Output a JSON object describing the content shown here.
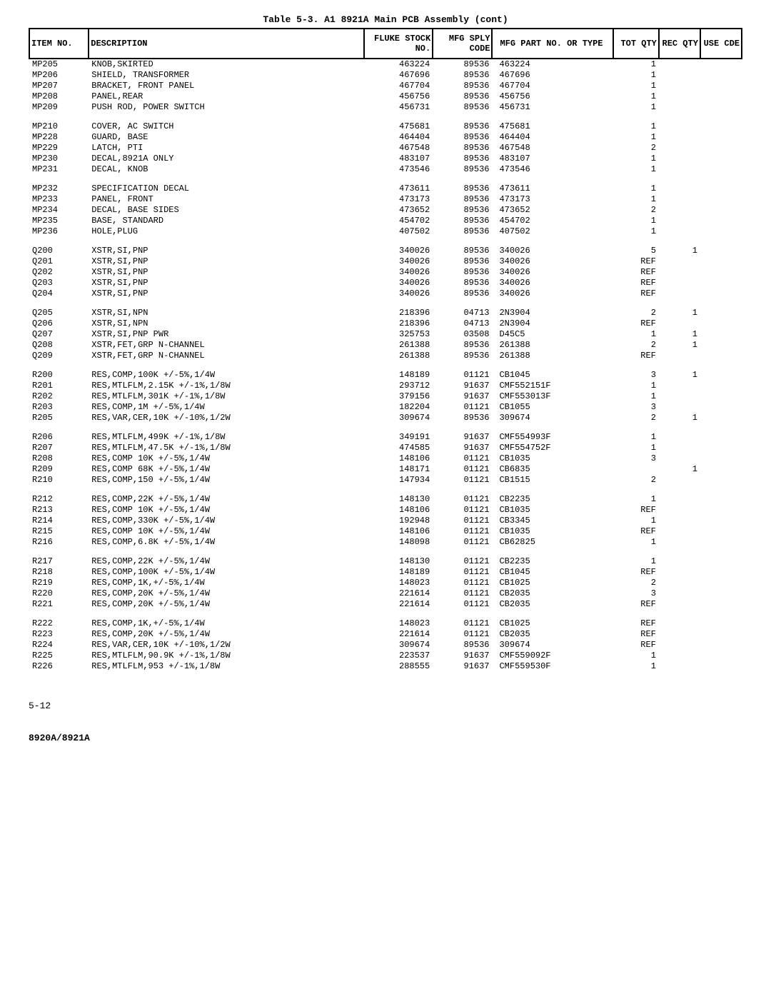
{
  "title": "Table 5-3. A1 8921A Main PCB Assembly (cont)",
  "headers": {
    "item": "ITEM NO.",
    "desc": "DESCRIPTION",
    "stock": "FLUKE STOCK NO.",
    "sply": "MFG SPLY CODE",
    "part": "MFG PART NO. OR TYPE",
    "tot": "TOT QTY",
    "rec": "REC QTY",
    "use": "USE CDE"
  },
  "rows": [
    {
      "item": "MP205",
      "desc": "KNOB,SKIRTED",
      "stock": "463224",
      "sply": "89536",
      "part": "463224",
      "tot": "1",
      "rec": "",
      "use": ""
    },
    {
      "item": "MP206",
      "desc": "SHIELD, TRANSFORMER",
      "stock": "467696",
      "sply": "89536",
      "part": "467696",
      "tot": "1",
      "rec": "",
      "use": ""
    },
    {
      "item": "MP207",
      "desc": "BRACKET, FRONT PANEL",
      "stock": "467704",
      "sply": "89536",
      "part": "467704",
      "tot": "1",
      "rec": "",
      "use": ""
    },
    {
      "item": "MP208",
      "desc": "PANEL,REAR",
      "stock": "456756",
      "sply": "89536",
      "part": "456756",
      "tot": "1",
      "rec": "",
      "use": ""
    },
    {
      "item": "MP209",
      "desc": "PUSH ROD, POWER SWITCH",
      "stock": "456731",
      "sply": "89536",
      "part": "456731",
      "tot": "1",
      "rec": "",
      "use": ""
    },
    {
      "gap": true
    },
    {
      "item": "MP210",
      "desc": "COVER, AC SWITCH",
      "stock": "475681",
      "sply": "89536",
      "part": "475681",
      "tot": "1",
      "rec": "",
      "use": ""
    },
    {
      "item": "MP228",
      "desc": "GUARD, BASE",
      "stock": "464404",
      "sply": "89536",
      "part": "464404",
      "tot": "1",
      "rec": "",
      "use": ""
    },
    {
      "item": "MP229",
      "desc": "LATCH, PTI",
      "stock": "467548",
      "sply": "89536",
      "part": "467548",
      "tot": "2",
      "rec": "",
      "use": ""
    },
    {
      "item": "MP230",
      "desc": "DECAL,8921A ONLY",
      "stock": "483107",
      "sply": "89536",
      "part": "483107",
      "tot": "1",
      "rec": "",
      "use": ""
    },
    {
      "item": "MP231",
      "desc": "DECAL, KNOB",
      "stock": "473546",
      "sply": "89536",
      "part": "473546",
      "tot": "1",
      "rec": "",
      "use": ""
    },
    {
      "gap": true
    },
    {
      "item": "MP232",
      "desc": "SPECIFICATION DECAL",
      "stock": "473611",
      "sply": "89536",
      "part": "473611",
      "tot": "1",
      "rec": "",
      "use": ""
    },
    {
      "item": "MP233",
      "desc": "PANEL, FRONT",
      "stock": "473173",
      "sply": "89536",
      "part": "473173",
      "tot": "1",
      "rec": "",
      "use": ""
    },
    {
      "item": "MP234",
      "desc": "DECAL, BASE SIDES",
      "stock": "473652",
      "sply": "89536",
      "part": "473652",
      "tot": "2",
      "rec": "",
      "use": ""
    },
    {
      "item": "MP235",
      "desc": "BASE, STANDARD",
      "stock": "454702",
      "sply": "89536",
      "part": "454702",
      "tot": "1",
      "rec": "",
      "use": ""
    },
    {
      "item": "MP236",
      "desc": "HOLE,PLUG",
      "stock": "407502",
      "sply": "89536",
      "part": "407502",
      "tot": "1",
      "rec": "",
      "use": ""
    },
    {
      "gap": true
    },
    {
      "item": "Q200",
      "desc": "XSTR,SI,PNP",
      "stock": "340026",
      "sply": "89536",
      "part": "340026",
      "tot": "5",
      "rec": "1",
      "use": ""
    },
    {
      "item": "Q201",
      "desc": "XSTR,SI,PNP",
      "stock": "340026",
      "sply": "89536",
      "part": "340026",
      "tot": "REF",
      "rec": "",
      "use": ""
    },
    {
      "item": "Q202",
      "desc": "XSTR,SI,PNP",
      "stock": "340026",
      "sply": "89536",
      "part": "340026",
      "tot": "REF",
      "rec": "",
      "use": ""
    },
    {
      "item": "Q203",
      "desc": "XSTR,SI,PNP",
      "stock": "340026",
      "sply": "89536",
      "part": "340026",
      "tot": "REF",
      "rec": "",
      "use": ""
    },
    {
      "item": "Q204",
      "desc": "XSTR,SI,PNP",
      "stock": "340026",
      "sply": "89536",
      "part": "340026",
      "tot": "REF",
      "rec": "",
      "use": ""
    },
    {
      "gap": true
    },
    {
      "item": "Q205",
      "desc": "XSTR,SI,NPN",
      "stock": "218396",
      "sply": "04713",
      "part": "2N3904",
      "tot": "2",
      "rec": "1",
      "use": ""
    },
    {
      "item": "Q206",
      "desc": "XSTR,SI,NPN",
      "stock": "218396",
      "sply": "04713",
      "part": "2N3904",
      "tot": "REF",
      "rec": "",
      "use": ""
    },
    {
      "item": "Q207",
      "desc": "XSTR,SI,PNP PWR",
      "stock": "325753",
      "sply": "03508",
      "part": "D45C5",
      "tot": "1",
      "rec": "1",
      "use": ""
    },
    {
      "item": "Q208",
      "desc": "XSTR,FET,GRP N-CHANNEL",
      "stock": "261388",
      "sply": "89536",
      "part": "261388",
      "tot": "2",
      "rec": "1",
      "use": ""
    },
    {
      "item": "Q209",
      "desc": "XSTR,FET,GRP N-CHANNEL",
      "stock": "261388",
      "sply": "89536",
      "part": "261388",
      "tot": "REF",
      "rec": "",
      "use": ""
    },
    {
      "gap": true
    },
    {
      "item": "R200",
      "desc": "RES,COMP,100K +/-5%,1/4W",
      "stock": "148189",
      "sply": "01121",
      "part": "CB1045",
      "tot": "3",
      "rec": "1",
      "use": ""
    },
    {
      "item": "R201",
      "desc": "RES,MTLFLM,2.15K +/-1%,1/8W",
      "stock": "293712",
      "sply": "91637",
      "part": "CMF552151F",
      "tot": "1",
      "rec": "",
      "use": ""
    },
    {
      "item": "R202",
      "desc": "RES,MTLFLM,301K +/-1%,1/8W",
      "stock": "379156",
      "sply": "91637",
      "part": "CMF553013F",
      "tot": "1",
      "rec": "",
      "use": ""
    },
    {
      "item": "R203",
      "desc": "RES,COMP,1M +/-5%,1/4W",
      "stock": "182204",
      "sply": "01121",
      "part": "CB1055",
      "tot": "3",
      "rec": "",
      "use": ""
    },
    {
      "item": "R205",
      "desc": "RES,VAR,CER,10K +/-10%,1/2W",
      "stock": "309674",
      "sply": "89536",
      "part": "309674",
      "tot": "2",
      "rec": "1",
      "use": ""
    },
    {
      "gap": true
    },
    {
      "item": "R206",
      "desc": "RES,MTLFLM,499K +/-1%,1/8W",
      "stock": "349191",
      "sply": "91637",
      "part": "CMF554993F",
      "tot": "1",
      "rec": "",
      "use": ""
    },
    {
      "item": "R207",
      "desc": "RES,MTLFLM,47.5K +/-1%,1/8W",
      "stock": "474585",
      "sply": "91637",
      "part": "CMF554752F",
      "tot": "1",
      "rec": "",
      "use": ""
    },
    {
      "item": "R208",
      "desc": "RES,COMP 10K +/-5%,1/4W",
      "stock": "148106",
      "sply": "01121",
      "part": "CB1035",
      "tot": "3",
      "rec": "",
      "use": ""
    },
    {
      "item": "R209",
      "desc": "RES,COMP 68K +/-5%,1/4W",
      "stock": "148171",
      "sply": "01121",
      "part": "CB6835",
      "tot": "",
      "rec": "1",
      "use": ""
    },
    {
      "item": "R210",
      "desc": "RES,COMP,150 +/-5%,1/4W",
      "stock": "147934",
      "sply": "01121",
      "part": "CB1515",
      "tot": "2",
      "rec": "",
      "use": ""
    },
    {
      "gap": true
    },
    {
      "item": "R212",
      "desc": "RES,COMP,22K +/-5%,1/4W",
      "stock": "148130",
      "sply": "01121",
      "part": "CB2235",
      "tot": "1",
      "rec": "",
      "use": ""
    },
    {
      "item": "R213",
      "desc": "RES,COMP 10K +/-5%,1/4W",
      "stock": "148106",
      "sply": "01121",
      "part": "CB1035",
      "tot": "REF",
      "rec": "",
      "use": ""
    },
    {
      "item": "R214",
      "desc": "RES,COMP,330K +/-5%,1/4W",
      "stock": "192948",
      "sply": "01121",
      "part": "CB3345",
      "tot": "1",
      "rec": "",
      "use": ""
    },
    {
      "item": "R215",
      "desc": "RES,COMP 10K +/-5%,1/4W",
      "stock": "148106",
      "sply": "01121",
      "part": "CB1035",
      "tot": "REF",
      "rec": "",
      "use": ""
    },
    {
      "item": "R216",
      "desc": "RES,COMP,6.8K +/-5%,1/4W",
      "stock": "148098",
      "sply": "01121",
      "part": "CB62825",
      "tot": "1",
      "rec": "",
      "use": ""
    },
    {
      "gap": true
    },
    {
      "item": "R217",
      "desc": "RES,COMP,22K +/-5%,1/4W",
      "stock": "148130",
      "sply": "01121",
      "part": "CB2235",
      "tot": "1",
      "rec": "",
      "use": ""
    },
    {
      "item": "R218",
      "desc": "RES,COMP,100K +/-5%,1/4W",
      "stock": "148189",
      "sply": "01121",
      "part": "CB1045",
      "tot": "REF",
      "rec": "",
      "use": ""
    },
    {
      "item": "R219",
      "desc": "RES,COMP,1K,+/-5%,1/4W",
      "stock": "148023",
      "sply": "01121",
      "part": "CB1025",
      "tot": "2",
      "rec": "",
      "use": ""
    },
    {
      "item": "R220",
      "desc": "RES,COMP,20K +/-5%,1/4W",
      "stock": "221614",
      "sply": "01121",
      "part": "CB2035",
      "tot": "3",
      "rec": "",
      "use": ""
    },
    {
      "item": "R221",
      "desc": "RES,COMP,20K +/-5%,1/4W",
      "stock": "221614",
      "sply": "01121",
      "part": "CB2035",
      "tot": "REF",
      "rec": "",
      "use": ""
    },
    {
      "gap": true
    },
    {
      "item": "R222",
      "desc": "RES,COMP,1K,+/-5%,1/4W",
      "stock": "148023",
      "sply": "01121",
      "part": "CB1025",
      "tot": "REF",
      "rec": "",
      "use": ""
    },
    {
      "item": "R223",
      "desc": "RES,COMP,20K +/-5%,1/4W",
      "stock": "221614",
      "sply": "01121",
      "part": "CB2035",
      "tot": "REF",
      "rec": "",
      "use": ""
    },
    {
      "item": "R224",
      "desc": "RES,VAR,CER,10K +/-10%,1/2W",
      "stock": "309674",
      "sply": "89536",
      "part": "309674",
      "tot": "REF",
      "rec": "",
      "use": ""
    },
    {
      "item": "R225",
      "desc": "RES,MTLFLM,90.9K +/-1%,1/8W",
      "stock": "223537",
      "sply": "91637",
      "part": "CMF559092F",
      "tot": "1",
      "rec": "",
      "use": ""
    },
    {
      "item": "R226",
      "desc": "RES,MTLFLM,953 +/-1%,1/8W",
      "stock": "288555",
      "sply": "91637",
      "part": "CMF559530F",
      "tot": "1",
      "rec": "",
      "use": ""
    }
  ],
  "footer_page": "5-12",
  "footer_model": "8920A/8921A"
}
